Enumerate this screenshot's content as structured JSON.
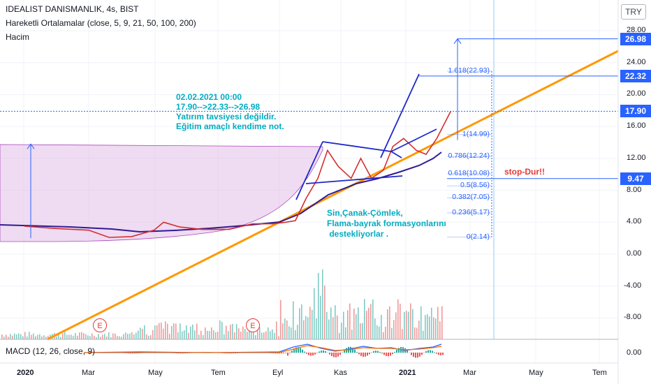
{
  "header": {
    "symbol_line": "IDEALIST DANISMANLIK, 4s, BIST",
    "ma_line": "Hareketli Ortalamalar (close, 5, 9, 21, 50, 100, 200)",
    "volume_label": "Hacim",
    "macd_label": "MACD (12, 26, close, 9)"
  },
  "currency_button": "TRY",
  "annotations": {
    "note_lines": [
      "02.02.2021 00:00",
      "17.90-->22.33-->26.98",
      "Yatırım tavsiyesi değildir.",
      "Eğitim amaçlı kendime not."
    ],
    "pattern_lines": [
      "Sin,Çanak-Çömlek,",
      "Flama-bayrak formasyonlarını",
      " destekliyorlar ."
    ],
    "stop_text": "stop-Dur!!"
  },
  "price_badges": [
    {
      "label": "26.98",
      "value": 26.98,
      "color": "#2962ff"
    },
    {
      "label": "22.32",
      "value": 22.32,
      "color": "#2962ff"
    },
    {
      "label": "17.90",
      "value": 17.9,
      "color": "#2962ff"
    },
    {
      "label": "9.47",
      "value": 9.47,
      "color": "#2962ff"
    }
  ],
  "fib_levels": [
    {
      "label": "1.618(22.93)",
      "value": 22.93
    },
    {
      "label": "1(14.99)",
      "value": 14.99
    },
    {
      "label": "0.786(12.24)",
      "value": 12.24
    },
    {
      "label": "0.618(10.08)",
      "value": 10.08
    },
    {
      "label": "0.5(8.56)",
      "value": 8.56
    },
    {
      "label": "0.382(7.05)",
      "value": 7.05
    },
    {
      "label": "0.236(5.17)",
      "value": 5.17
    },
    {
      "label": "0(2.14)",
      "value": 2.14
    }
  ],
  "earnings_marker": "E",
  "chart_data": {
    "type": "line",
    "title": "IDEALIST DANISMANLIK, 4s, BIST",
    "y_axis_ticks": [
      "28.00",
      "24.00",
      "20.00",
      "16.00",
      "12.00",
      "8.00",
      "4.00",
      "0.00",
      "-4.00",
      "-8.00"
    ],
    "macd_axis_ticks": [
      "0.00"
    ],
    "x_axis_ticks": [
      "2020",
      "Mar",
      "May",
      "Tem",
      "Eyl",
      "Kas",
      "2021",
      "Mar",
      "May",
      "Tem"
    ],
    "ylim": [
      -10,
      30
    ],
    "series": [
      {
        "name": "close",
        "x": [
          "2020-01-01",
          "2020-02-01",
          "2020-03-01",
          "2020-03-20",
          "2020-04-10",
          "2020-05-01",
          "2020-05-10",
          "2020-05-25",
          "2020-06-15",
          "2020-07-10",
          "2020-08-01",
          "2020-08-20",
          "2020-09-01",
          "2020-09-10",
          "2020-09-20",
          "2020-10-01",
          "2020-10-10",
          "2020-10-20",
          "2020-11-01",
          "2020-11-10",
          "2020-11-20",
          "2020-12-01",
          "2020-12-10",
          "2020-12-20",
          "2021-01-01",
          "2021-01-10",
          "2021-01-20",
          "2021-02-02"
        ],
        "values": [
          3.5,
          3.2,
          3.0,
          2.1,
          2.2,
          3.0,
          4.0,
          3.4,
          3.1,
          3.1,
          3.8,
          3.8,
          4.0,
          4.2,
          7.0,
          9.5,
          13.0,
          11.0,
          9.5,
          12.0,
          9.5,
          10.5,
          13.5,
          14.5,
          13.0,
          12.5,
          14.5,
          17.9
        ]
      }
    ],
    "target_levels": [
      26.98,
      22.32,
      17.9,
      9.47
    ],
    "stop_level": 9.47,
    "grid": true,
    "legend": "top-left"
  }
}
